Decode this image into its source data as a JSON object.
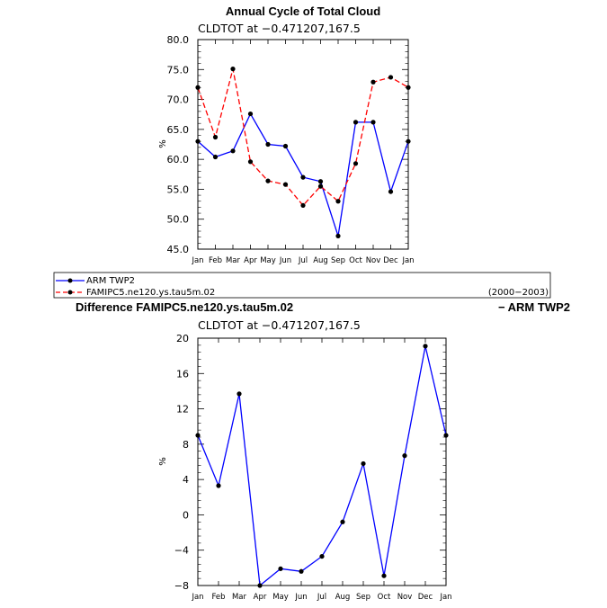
{
  "chart_data": [
    {
      "type": "line",
      "title": "Annual Cycle of Total Cloud",
      "subtitle": "CLDTOT at −0.471207,167.5",
      "ylabel": "%",
      "ylim": [
        45,
        80
      ],
      "yticks": [
        "45.0",
        "50.0",
        "55.0",
        "60.0",
        "65.0",
        "70.0",
        "75.0",
        "80.0"
      ],
      "categories": [
        "Jan",
        "Feb",
        "Mar",
        "Apr",
        "May",
        "Jun",
        "Jul",
        "Aug",
        "Sep",
        "Oct",
        "Nov",
        "Dec",
        "Jan"
      ],
      "series": [
        {
          "name": "ARM TWP2",
          "color": "#0000ff",
          "style": "solid",
          "values": [
            63.0,
            60.4,
            61.4,
            67.6,
            62.5,
            62.2,
            57.0,
            56.3,
            47.2,
            66.2,
            66.2,
            54.6,
            63.0
          ]
        },
        {
          "name": "FAMIPC5.ne120.ys.tau5m.02",
          "color": "#ff0000",
          "style": "dashed",
          "values": [
            72.0,
            63.7,
            75.1,
            59.6,
            56.4,
            55.8,
            52.3,
            55.5,
            53.0,
            59.3,
            72.9,
            73.7,
            72.0
          ]
        }
      ],
      "legend": {
        "items": [
          "ARM TWP2",
          "FAMIPC5.ne120.ys.tau5m.02"
        ],
        "period": "(2000−2003)",
        "placement": "bottom"
      },
      "grid": false
    },
    {
      "type": "line",
      "title": "Difference FAMIPC5.ne120.ys.tau5m.02",
      "title_right": "− ARM TWP2",
      "subtitle": "CLDTOT at −0.471207,167.5",
      "ylabel": "%",
      "ylim": [
        -8,
        20
      ],
      "yticks": [
        "−8",
        "−4",
        "0",
        "4",
        "8",
        "12",
        "16",
        "20"
      ],
      "categories": [
        "Jan",
        "Feb",
        "Mar",
        "Apr",
        "May",
        "Jun",
        "Jul",
        "Aug",
        "Sep",
        "Oct",
        "Nov",
        "Dec",
        "Jan"
      ],
      "series": [
        {
          "color": "#0000ff",
          "style": "solid",
          "values": [
            9.0,
            3.3,
            13.7,
            -8.0,
            -6.1,
            -6.4,
            -4.7,
            -0.8,
            5.8,
            -6.9,
            6.7,
            19.1,
            9.0
          ]
        }
      ],
      "grid": false
    }
  ]
}
